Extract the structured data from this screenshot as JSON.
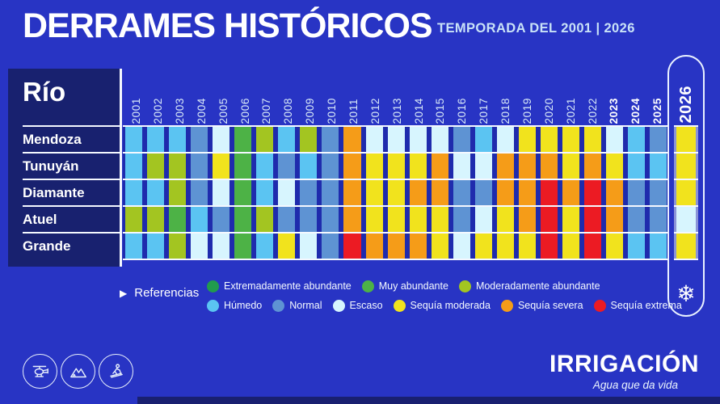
{
  "header": {
    "title": "DERRAMES HISTÓRICOS",
    "subtitle": "TEMPORADA DEL 2001 | 2026"
  },
  "table": {
    "row_header": "Río"
  },
  "chart_data": {
    "type": "heatmap",
    "title": "DERRAMES HISTÓRICOS",
    "subtitle": "TEMPORADA DEL 2001 | 2026",
    "x": [
      "2001",
      "2002",
      "2003",
      "2004",
      "2005",
      "2006",
      "2007",
      "2008",
      "2009",
      "2010",
      "2011",
      "2012",
      "2013",
      "2014",
      "2015",
      "2016",
      "2017",
      "2018",
      "2019",
      "2020",
      "2021",
      "2022",
      "2023",
      "2024",
      "2025",
      "2026"
    ],
    "bold_years": [
      "2023",
      "2024",
      "2025"
    ],
    "rows": [
      "Mendoza",
      "Tunuyán",
      "Diamante",
      "Atuel",
      "Grande"
    ],
    "palette": {
      "EA": "#219B4D",
      "MA": "#4DB246",
      "MO": "#A3C521",
      "HU": "#5BC4F2",
      "NO": "#5E93D3",
      "ES": "#D7F5FE",
      "SM": "#F1E31D",
      "SS": "#F59C18",
      "SE": "#EC1B23"
    },
    "palette_labels": {
      "EA": "Extremadamente abundante",
      "MA": "Muy abundante",
      "MO": "Moderadamente abundante",
      "HU": "Húmedo",
      "NO": "Normal",
      "ES": "Escaso",
      "SM": "Sequía moderada",
      "SS": "Sequía severa",
      "SE": "Sequía extrema"
    },
    "series": [
      {
        "name": "Mendoza",
        "values": [
          "HU",
          "HU",
          "HU",
          "NO",
          "ES",
          "MA",
          "MO",
          "HU",
          "MO",
          "NO",
          "SS",
          "ES",
          "ES",
          "ES",
          "ES",
          "NO",
          "HU",
          "ES",
          "SM",
          "SM",
          "SM",
          "SM",
          "ES",
          "HU",
          "NO",
          "SM"
        ]
      },
      {
        "name": "Tunuyán",
        "values": [
          "HU",
          "MO",
          "MO",
          "NO",
          "SM",
          "MA",
          "HU",
          "NO",
          "HU",
          "NO",
          "SS",
          "SM",
          "SM",
          "SM",
          "SS",
          "ES",
          "ES",
          "SS",
          "SS",
          "SS",
          "SM",
          "SS",
          "SM",
          "HU",
          "HU",
          "SM"
        ]
      },
      {
        "name": "Diamante",
        "values": [
          "HU",
          "HU",
          "MO",
          "NO",
          "ES",
          "MA",
          "HU",
          "ES",
          "NO",
          "NO",
          "SS",
          "SM",
          "SM",
          "SS",
          "SS",
          "NO",
          "NO",
          "SS",
          "SS",
          "SE",
          "SS",
          "SE",
          "SS",
          "NO",
          "NO",
          "SM"
        ]
      },
      {
        "name": "Atuel",
        "values": [
          "MO",
          "MO",
          "MA",
          "HU",
          "NO",
          "MA",
          "MO",
          "NO",
          "NO",
          "NO",
          "SS",
          "SM",
          "SM",
          "SM",
          "SM",
          "NO",
          "ES",
          "SM",
          "SS",
          "SE",
          "SM",
          "SE",
          "SS",
          "NO",
          "NO",
          "ES"
        ]
      },
      {
        "name": "Grande",
        "values": [
          "HU",
          "HU",
          "MO",
          "ES",
          "ES",
          "MA",
          "HU",
          "SM",
          "ES",
          "NO",
          "SE",
          "SS",
          "SS",
          "SS",
          "SM",
          "ES",
          "SM",
          "SM",
          "SM",
          "SE",
          "SM",
          "SE",
          "SM",
          "HU",
          "HU",
          "SM"
        ]
      }
    ],
    "legend_position": "bottom"
  },
  "legend": {
    "label": "Referencias",
    "arrow_icon": "▶",
    "row1": [
      {
        "key": "EA",
        "label": "Extremadamente abundante"
      },
      {
        "key": "MA",
        "label": "Muy abundante"
      },
      {
        "key": "MO",
        "label": "Moderadamente abundante"
      }
    ],
    "row2": [
      {
        "key": "HU",
        "label": "Húmedo"
      },
      {
        "key": "NO",
        "label": "Normal"
      },
      {
        "key": "ES",
        "label": "Escaso"
      },
      {
        "key": "SM",
        "label": "Sequía moderada"
      },
      {
        "key": "SS",
        "label": "Sequía severa"
      },
      {
        "key": "SE",
        "label": "Sequía extrema"
      }
    ]
  },
  "forecast_column": {
    "year": "2026",
    "snowflake_icon": "❄"
  },
  "footer": {
    "brand": "IRRIGACIÓN",
    "tagline": "Agua que da vida",
    "icons": [
      "helicopter-icon",
      "mountains-icon",
      "skier-icon"
    ]
  },
  "colors": {
    "background": "#2834C4",
    "panel": "#18216F",
    "cell_gap": "#1F2BAD",
    "pill_gap": "#8A93D8",
    "separator": "#F4F8FF",
    "bottom_strip": "#192070"
  }
}
